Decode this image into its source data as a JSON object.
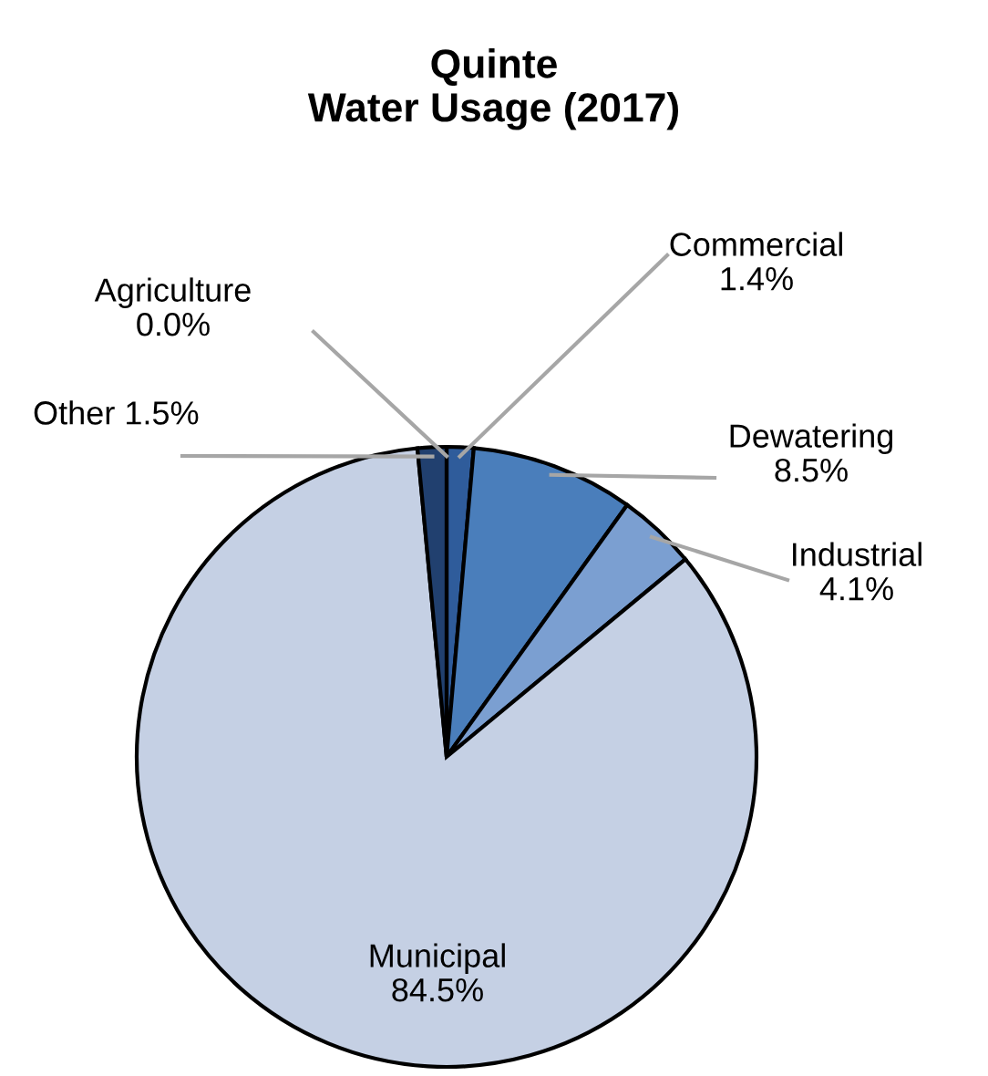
{
  "chart_data": {
    "type": "pie",
    "title": "Quinte\nWater Usage (2017)",
    "categories": [
      "Commercial",
      "Dewatering",
      "Industrial",
      "Municipal",
      "Other",
      "Agriculture"
    ],
    "values": [
      1.4,
      8.5,
      4.1,
      84.5,
      1.5,
      0.0
    ],
    "colors": [
      "#2f5c9b",
      "#4a7ebb",
      "#7b9fd1",
      "#c5d0e4",
      "#21406f",
      "#3a6aa8"
    ],
    "value_labels": [
      "1.4%",
      "8.5%",
      "4.1%",
      "84.5%",
      "1.5%",
      "0.0%"
    ],
    "legend": false
  }
}
